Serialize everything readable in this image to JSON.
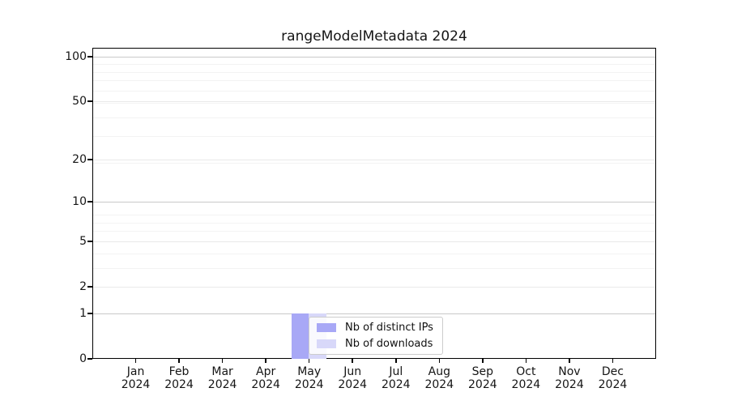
{
  "chart_data": {
    "type": "bar",
    "title": "rangeModelMetadata 2024",
    "categories": [
      "Jan 2024",
      "Feb 2024",
      "Mar 2024",
      "Apr 2024",
      "May 2024",
      "Jun 2024",
      "Jul 2024",
      "Aug 2024",
      "Sep 2024",
      "Oct 2024",
      "Nov 2024",
      "Dec 2024"
    ],
    "series": [
      {
        "name": "Nb of distinct IPs",
        "color": "#a8a8f6",
        "values": [
          0,
          0,
          0,
          0,
          1,
          0,
          0,
          0,
          0,
          0,
          0,
          0
        ]
      },
      {
        "name": "Nb of downloads",
        "color": "#d8d8f9",
        "values": [
          0,
          0,
          0,
          0,
          1,
          0,
          0,
          0,
          0,
          0,
          0,
          0
        ]
      }
    ],
    "xlabel": "",
    "ylabel": "",
    "y_scale": "log1p (y position ~ log10(1+value))",
    "y_ticks": [
      0,
      1,
      2,
      5,
      10,
      20,
      50,
      100
    ],
    "y_decade_gridlines": [
      1,
      10,
      100
    ],
    "y_mid_gridlines": [
      2,
      5,
      20,
      50
    ],
    "y_minor_gridlines": [
      3,
      4,
      6,
      7,
      8,
      19,
      29,
      39,
      49,
      59,
      69,
      79,
      89
    ],
    "ylim": [
      0,
      115
    ],
    "grid": "horizontal only",
    "legend_position": "inside, lower center-left",
    "colors": {
      "spine": "#000000",
      "grid_decade": "#c9c9c9",
      "grid_mid": "#e9e9e9",
      "grid_minor": "#f3f3f3",
      "text": "#151515",
      "legend_border": "#cccccc",
      "background": "#ffffff"
    }
  }
}
